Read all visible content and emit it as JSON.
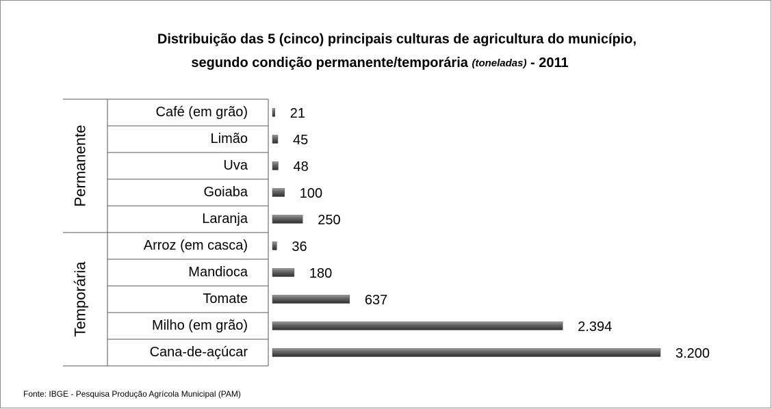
{
  "chart_data": {
    "type": "bar",
    "title": [
      "Distribuição das 5 (cinco) principais culturas de agricultura do município,",
      "segundo condição permanente/temporária"
    ],
    "title_note": "(toneladas)",
    "title_suffix": "- 2011",
    "groups": [
      {
        "name": "Permanente",
        "categories": [
          "Café (em grão)",
          "Limão",
          "Uva",
          "Goiaba",
          "Laranja"
        ],
        "values": [
          21,
          45,
          48,
          100,
          250
        ]
      },
      {
        "name": "Temporária",
        "categories": [
          "Arroz (em casca)",
          "Mandioca",
          "Tomate",
          "Milho (em grão)",
          "Cana-de-açúcar"
        ],
        "values": [
          36,
          180,
          637,
          2394,
          3200
        ],
        "value_labels": [
          "36",
          "180",
          "637",
          "2.394",
          "3.200"
        ]
      }
    ],
    "color": "#555555",
    "source": "Fonte: IBGE - Pesquisa Produção Agrícola Municipal (PAM)"
  }
}
